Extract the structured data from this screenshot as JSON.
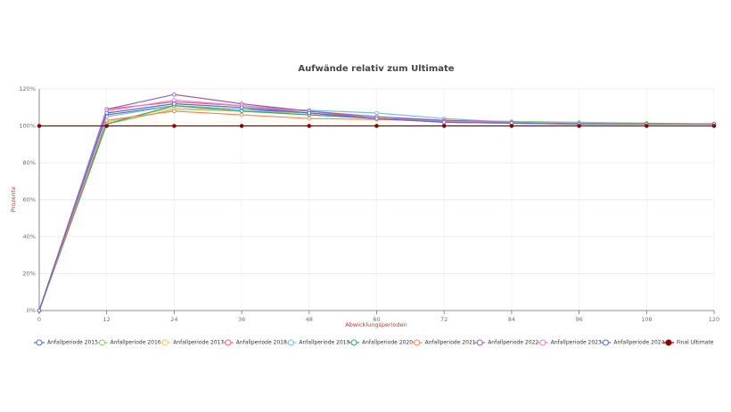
{
  "chart_data": {
    "type": "line",
    "title": "Aufwände relativ zum Ultimate",
    "x_label": "Abwicklungsperioden",
    "y_label": "Prozente",
    "x": [
      0,
      12,
      24,
      36,
      48,
      60,
      72,
      84,
      96,
      108,
      120
    ],
    "xlim": [
      0,
      120
    ],
    "xticks": [
      0,
      12,
      24,
      36,
      48,
      60,
      72,
      84,
      96,
      108,
      120
    ],
    "ylim": [
      0,
      120
    ],
    "yticks": [
      {
        "value": 0,
        "label": "0%"
      },
      {
        "value": 20,
        "label": "20%"
      },
      {
        "value": 40,
        "label": "40%"
      },
      {
        "value": 60,
        "label": "60%"
      },
      {
        "value": 80,
        "label": "80%"
      },
      {
        "value": 100,
        "label": "100%"
      },
      {
        "value": 120,
        "label": "120%"
      }
    ],
    "grid": true,
    "legend": "bottom",
    "series": [
      {
        "name": "Anfallperiode 2015",
        "color": "#5470c6",
        "values": [
          0,
          106,
          111,
          109,
          107,
          104,
          102,
          101.5,
          101,
          101,
          101
        ]
      },
      {
        "name": "Anfallperiode 2016",
        "color": "#91cc75",
        "values": [
          0,
          101,
          109,
          108,
          107,
          104,
          103,
          102.5,
          102,
          101.5,
          101
        ]
      },
      {
        "name": "Anfallperiode 2017",
        "color": "#fac858",
        "values": [
          0,
          102,
          110,
          108,
          106,
          104,
          103,
          102,
          101.5,
          101,
          101
        ]
      },
      {
        "name": "Anfallperiode 2018",
        "color": "#ee6666",
        "values": [
          0,
          109,
          113,
          111,
          108,
          104,
          103,
          102,
          101,
          101,
          101
        ]
      },
      {
        "name": "Anfallperiode 2019",
        "color": "#73c0de",
        "values": [
          0,
          105,
          111,
          109,
          108.5,
          107,
          104,
          102,
          101.5,
          101,
          101
        ]
      },
      {
        "name": "Anfallperiode 2020",
        "color": "#3ba272",
        "values": [
          0,
          101,
          111,
          108,
          106,
          104,
          103,
          102,
          101,
          101,
          101
        ]
      },
      {
        "name": "Anfallperiode 2021",
        "color": "#fc8452",
        "values": [
          0,
          103,
          108,
          106,
          104,
          103.5,
          102.5,
          102,
          101,
          101,
          101
        ]
      },
      {
        "name": "Anfallperiode 2022",
        "color": "#9a60b4",
        "values": [
          0,
          109,
          117,
          112,
          108,
          105,
          103,
          102,
          101,
          101,
          101
        ]
      },
      {
        "name": "Anfallperiode 2023",
        "color": "#ea7ccc",
        "values": [
          0,
          108,
          114,
          111,
          107,
          104,
          102.5,
          102,
          101,
          101,
          101
        ]
      },
      {
        "name": "Anfallperiode 2024",
        "color": "#5470c6",
        "values": [
          0,
          107,
          112,
          110,
          107,
          104,
          102,
          101.5,
          101,
          101,
          101
        ]
      },
      {
        "name": "Final Ultimate",
        "color": "#8b0000",
        "filled": true,
        "values": [
          100,
          100,
          100,
          100,
          100,
          100,
          100,
          100,
          100,
          100,
          100
        ]
      }
    ]
  }
}
